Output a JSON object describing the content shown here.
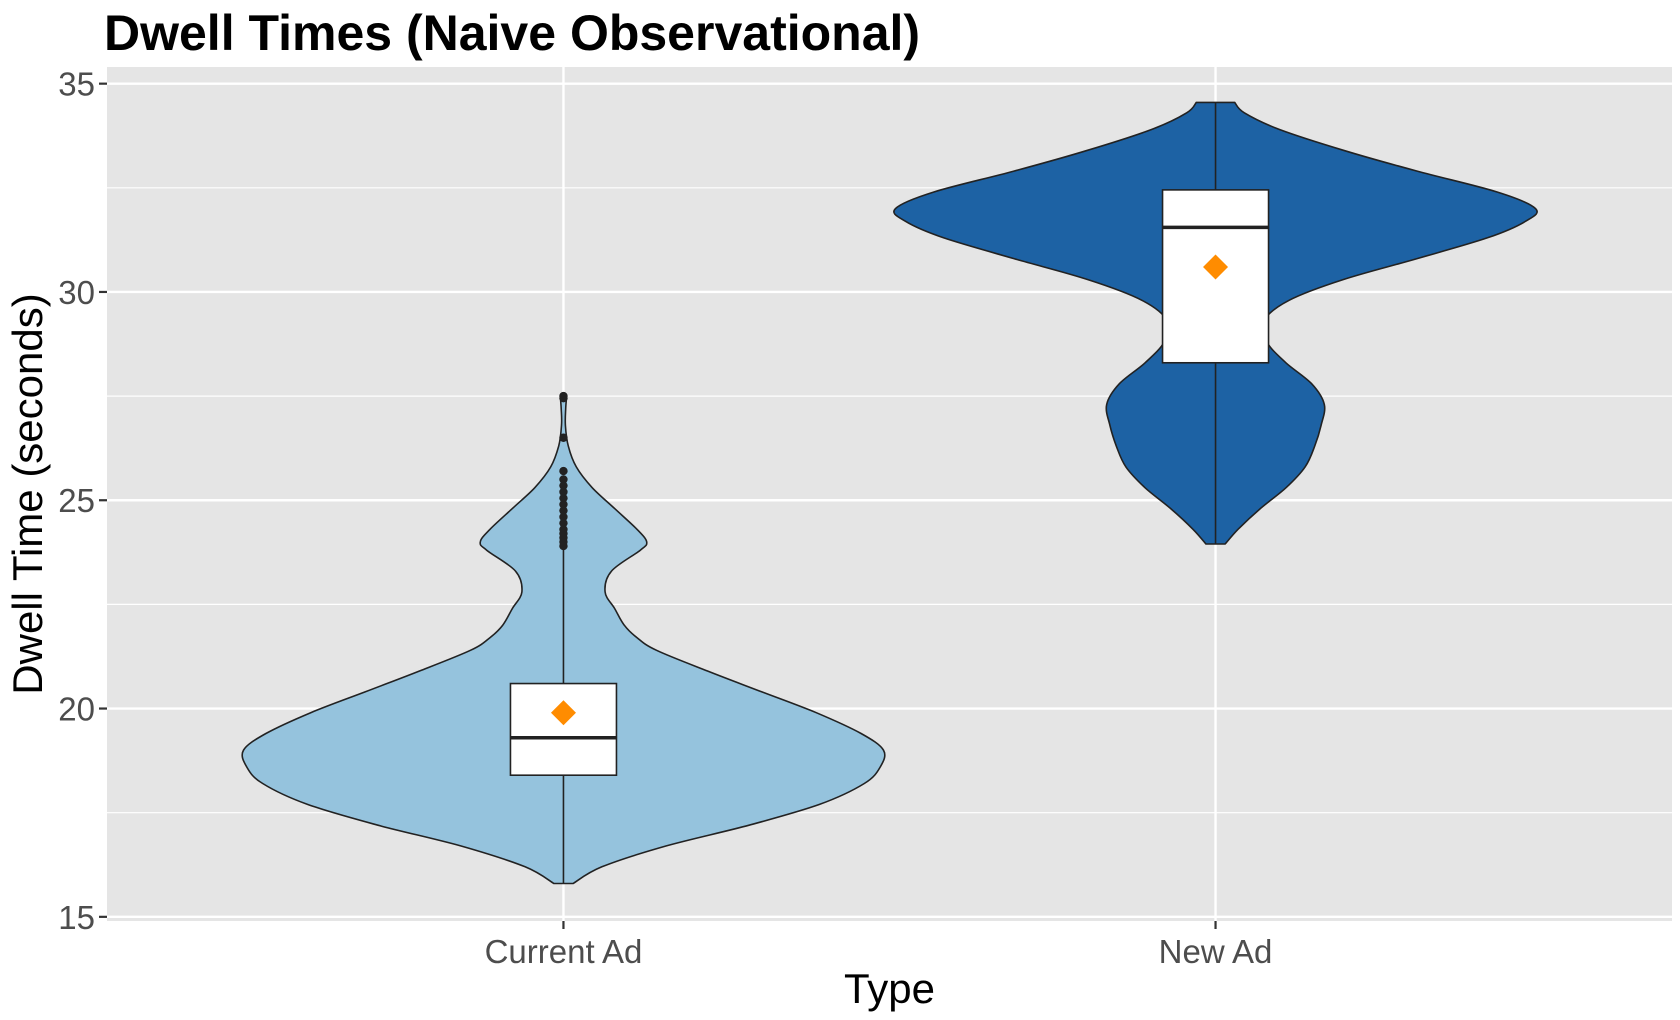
{
  "chart_data": {
    "type": "violin",
    "title": "Dwell Times (Naive Observational)",
    "xlabel": "Type",
    "ylabel": "Dwell Time (seconds)",
    "categories": [
      "Current Ad",
      "New Ad"
    ],
    "ylim": [
      14.9,
      35.4
    ],
    "yticks": [
      15,
      20,
      25,
      30,
      35
    ],
    "ytick_labels": [
      "15",
      "20",
      "25",
      "30",
      "35"
    ],
    "grid": true,
    "legend": "none",
    "colors": {
      "panel_background": "#e5e5e5",
      "grid": "#ffffff",
      "outline": "#222222",
      "box_fill": "#ffffff",
      "mean_marker": "#ff8c00",
      "outlier": "#222222"
    },
    "series": [
      {
        "name": "Current Ad",
        "fill": "#95c3dd",
        "violin_min": 15.8,
        "violin_max": 27.5,
        "density": [
          [
            15.8,
            0.03
          ],
          [
            16.2,
            0.12
          ],
          [
            16.7,
            0.32
          ],
          [
            17.2,
            0.58
          ],
          [
            17.7,
            0.8
          ],
          [
            18.2,
            0.94
          ],
          [
            18.6,
            0.99
          ],
          [
            19.0,
            1.0
          ],
          [
            19.4,
            0.93
          ],
          [
            19.9,
            0.79
          ],
          [
            20.4,
            0.62
          ],
          [
            20.9,
            0.45
          ],
          [
            21.4,
            0.29
          ],
          [
            21.7,
            0.23
          ],
          [
            22.0,
            0.19
          ],
          [
            22.4,
            0.16
          ],
          [
            22.8,
            0.13
          ],
          [
            23.3,
            0.15
          ],
          [
            23.8,
            0.24
          ],
          [
            24.0,
            0.26
          ],
          [
            24.3,
            0.23
          ],
          [
            24.8,
            0.16
          ],
          [
            25.3,
            0.09
          ],
          [
            25.8,
            0.04
          ],
          [
            26.3,
            0.015
          ],
          [
            26.8,
            0.006
          ],
          [
            27.2,
            0.007
          ],
          [
            27.5,
            0.01
          ]
        ],
        "box": {
          "q1": 18.4,
          "median": 19.3,
          "q3": 20.6,
          "whisker_low": 15.8,
          "whisker_high": 23.9
        },
        "mean": 19.9,
        "outliers": [
          23.9,
          24.0,
          24.1,
          24.2,
          24.3,
          24.45,
          24.6,
          24.75,
          24.9,
          25.05,
          25.2,
          25.35,
          25.5,
          25.7,
          26.5,
          27.45,
          27.5
        ]
      },
      {
        "name": "New Ad",
        "fill": "#1d62a4",
        "violin_min": 23.95,
        "violin_max": 34.55,
        "density": [
          [
            23.95,
            0.03
          ],
          [
            24.3,
            0.07
          ],
          [
            24.8,
            0.14
          ],
          [
            25.3,
            0.22
          ],
          [
            25.8,
            0.28
          ],
          [
            26.3,
            0.31
          ],
          [
            26.8,
            0.33
          ],
          [
            27.3,
            0.34
          ],
          [
            27.8,
            0.3
          ],
          [
            28.3,
            0.22
          ],
          [
            28.8,
            0.16
          ],
          [
            29.3,
            0.15
          ],
          [
            29.8,
            0.23
          ],
          [
            30.3,
            0.4
          ],
          [
            30.8,
            0.63
          ],
          [
            31.3,
            0.85
          ],
          [
            31.7,
            0.97
          ],
          [
            32.0,
            1.0
          ],
          [
            32.4,
            0.88
          ],
          [
            32.9,
            0.63
          ],
          [
            33.4,
            0.4
          ],
          [
            33.9,
            0.2
          ],
          [
            34.3,
            0.09
          ],
          [
            34.55,
            0.06
          ]
        ],
        "box": {
          "q1": 28.3,
          "median": 31.55,
          "q3": 32.45,
          "whisker_low": 23.95,
          "whisker_high": 34.55
        },
        "mean": 30.6,
        "outliers": []
      }
    ]
  }
}
